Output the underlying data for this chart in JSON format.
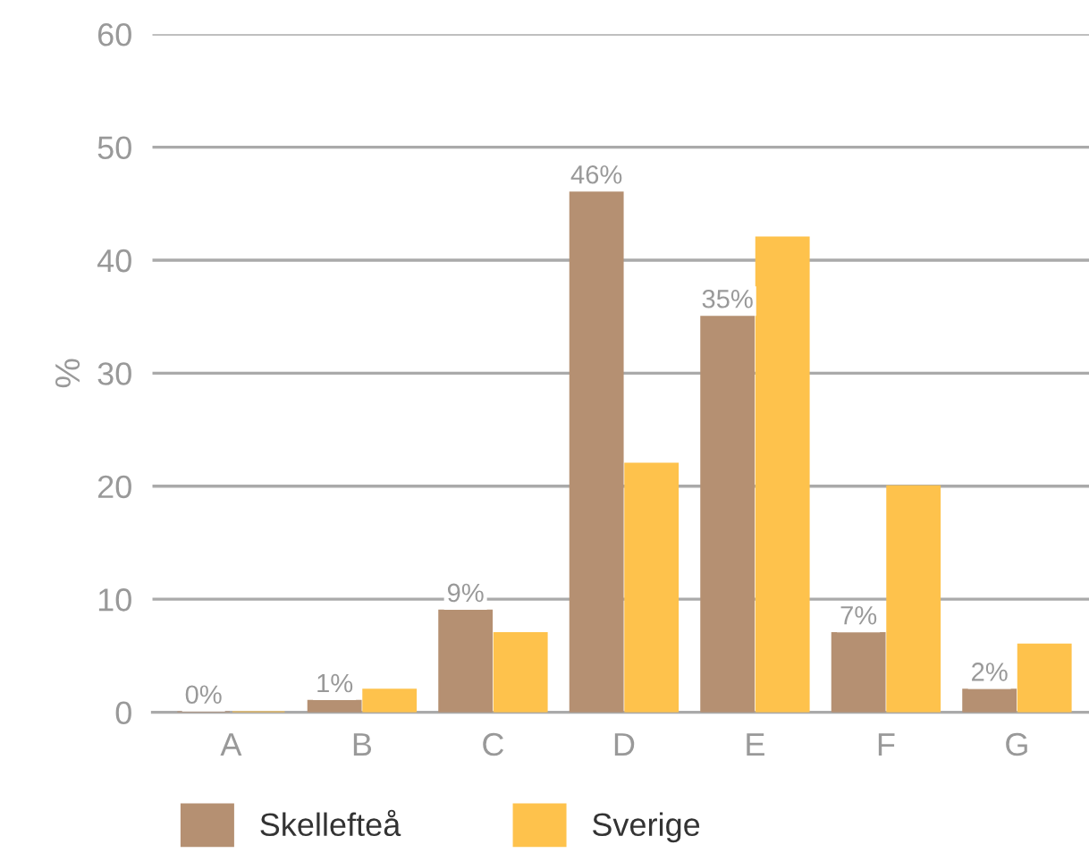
{
  "chart_data": {
    "type": "bar",
    "ylabel": "%",
    "categories": [
      "A",
      "B",
      "C",
      "D",
      "E",
      "F",
      "G"
    ],
    "series": [
      {
        "name": "Skellefteå",
        "color": "#b59072",
        "values": [
          0,
          1,
          9,
          46,
          35,
          7,
          2
        ],
        "value_labels": [
          "0%",
          "1%",
          "9%",
          "46%",
          "35%",
          "7%",
          "2%"
        ]
      },
      {
        "name": "Sverige",
        "color": "#fec24c",
        "values": [
          0,
          2,
          7,
          22,
          42,
          20,
          6
        ]
      }
    ],
    "ylim": [
      0,
      60
    ],
    "yticks": [
      0,
      10,
      20,
      30,
      40,
      50,
      60
    ],
    "grid": "y",
    "legend": "bottom left"
  }
}
